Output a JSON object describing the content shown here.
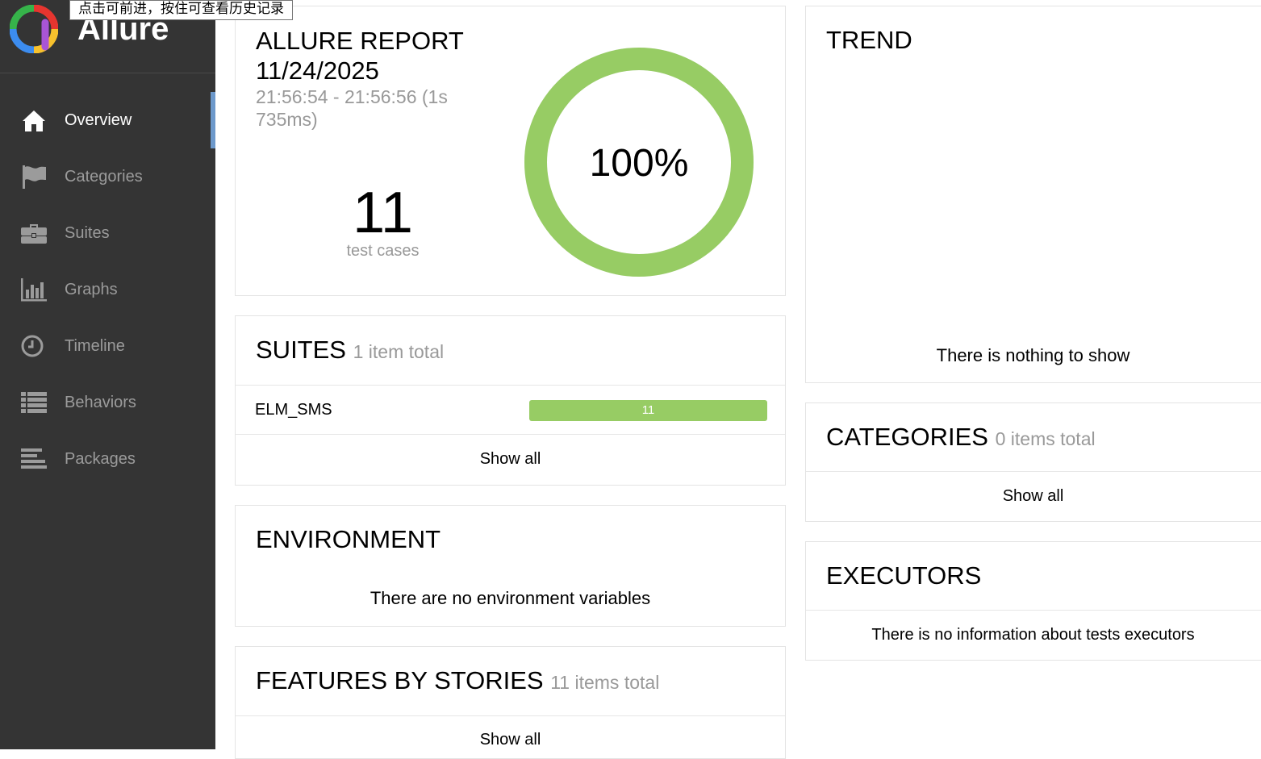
{
  "brand": {
    "name": "Allure",
    "tooltip": "点击可前进，按住可查看历史记录"
  },
  "nav": [
    {
      "label": "Overview",
      "icon": "home-icon",
      "active": true
    },
    {
      "label": "Categories",
      "icon": "flag-icon",
      "active": false
    },
    {
      "label": "Suites",
      "icon": "briefcase-icon",
      "active": false
    },
    {
      "label": "Graphs",
      "icon": "bar-chart-icon",
      "active": false
    },
    {
      "label": "Timeline",
      "icon": "clock-icon",
      "active": false
    },
    {
      "label": "Behaviors",
      "icon": "list-icon",
      "active": false
    },
    {
      "label": "Packages",
      "icon": "align-left-icon",
      "active": false
    }
  ],
  "summary": {
    "title": "ALLURE REPORT 11/24/2025",
    "time_range": "21:56:54 - 21:56:56 (1s 735ms)",
    "count": "11",
    "count_label": "test cases",
    "percent": "100%",
    "passed_fraction": 1.0
  },
  "suites": {
    "title": "SUITES",
    "subtitle": "1 item total",
    "items": [
      {
        "name": "ELM_SMS",
        "passed": "11"
      }
    ],
    "show_all": "Show all"
  },
  "environment": {
    "title": "ENVIRONMENT",
    "message": "There are no environment variables"
  },
  "features": {
    "title": "FEATURES BY STORIES",
    "subtitle": "11 items total",
    "show_all": "Show all"
  },
  "trend": {
    "title": "TREND",
    "message": "There is nothing to show"
  },
  "categories": {
    "title": "CATEGORIES",
    "subtitle": "0 items total",
    "show_all": "Show all"
  },
  "executors": {
    "title": "EXECUTORS",
    "message": "There is no information about tests executors"
  },
  "colors": {
    "passed": "#97cc64",
    "sidebar": "#343434",
    "active_indicator": "#6d99cb"
  }
}
